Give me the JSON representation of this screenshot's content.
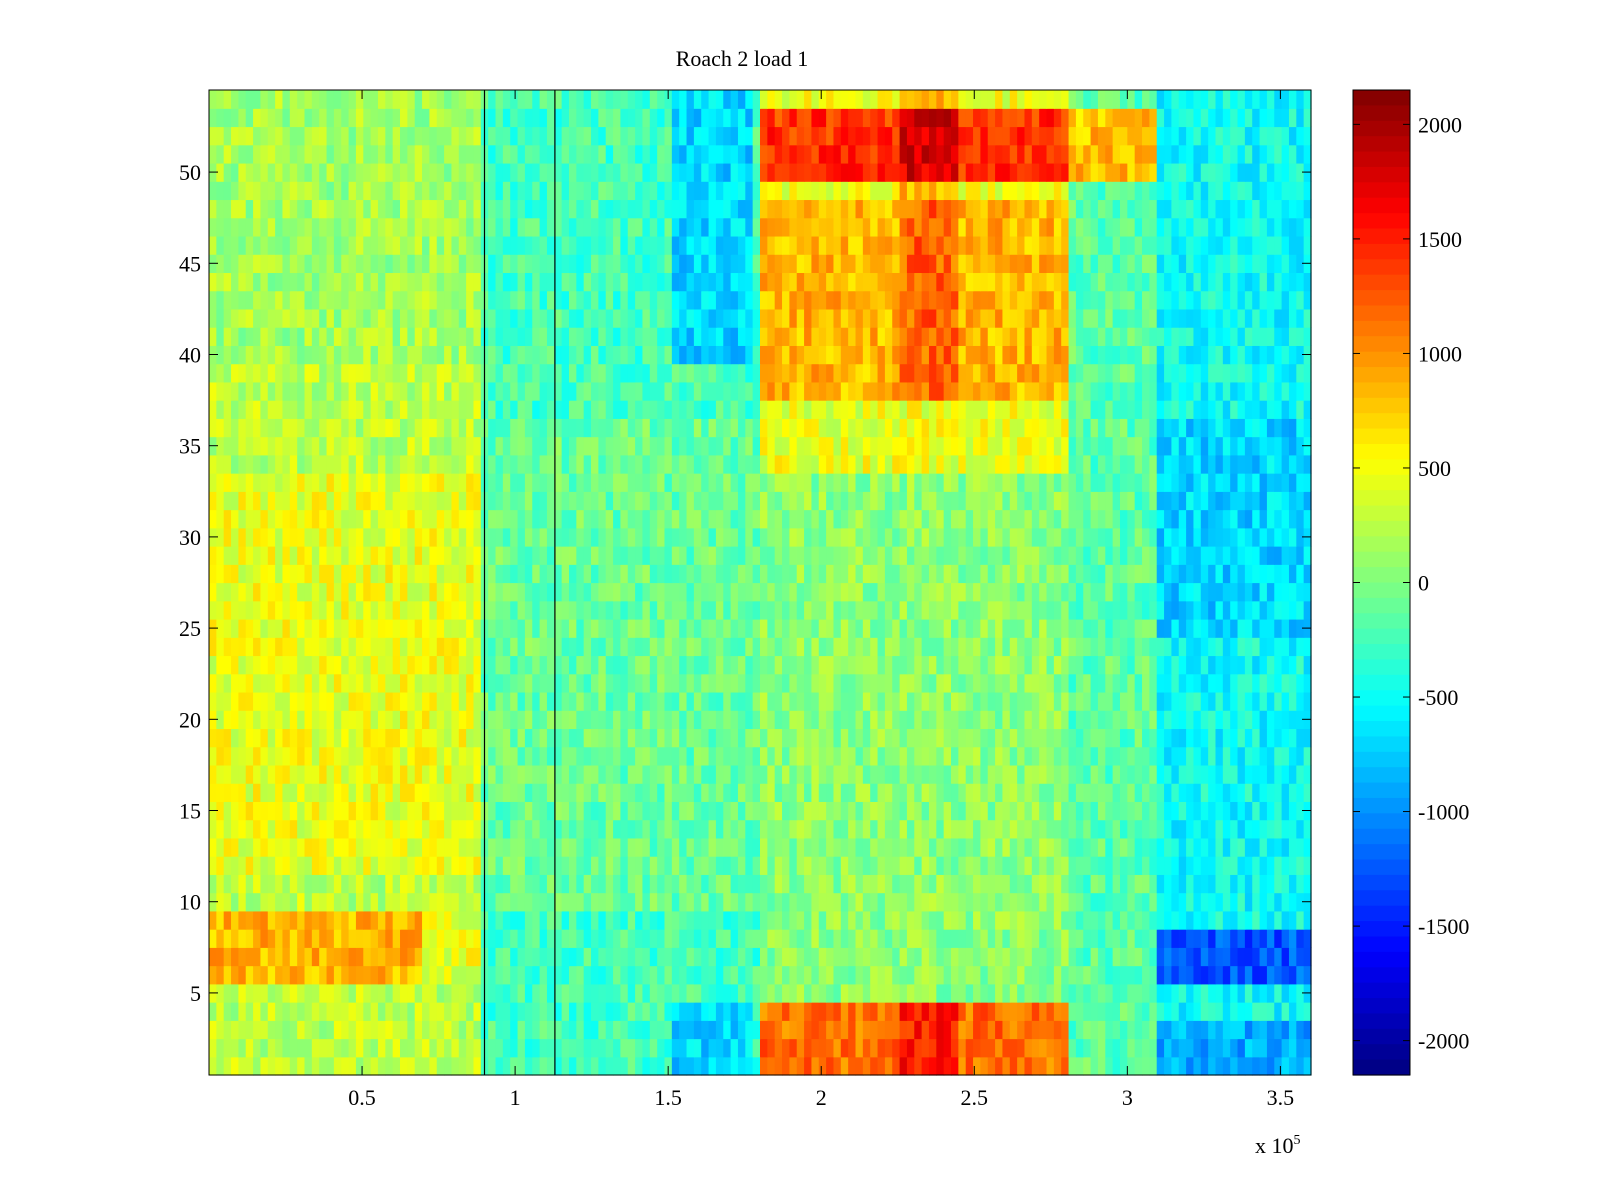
{
  "chart_data": {
    "type": "heatmap",
    "title": "Roach 2 load 1",
    "xlabel": "",
    "ylabel": "",
    "x_multiplier_label": "x 10",
    "x_multiplier_exponent": "5",
    "xlim": [
      0,
      360000
    ],
    "ylim": [
      0.5,
      54.5
    ],
    "x_ticks": [
      0.5,
      1,
      1.5,
      2,
      2.5,
      3,
      3.5
    ],
    "x_tick_labels": [
      "0.5",
      "1",
      "1.5",
      "2",
      "2.5",
      "3",
      "3.5"
    ],
    "y_ticks": [
      5,
      10,
      15,
      20,
      25,
      30,
      35,
      40,
      45,
      50
    ],
    "y_tick_labels": [
      "5",
      "10",
      "15",
      "20",
      "25",
      "30",
      "35",
      "40",
      "45",
      "50"
    ],
    "colorbar": {
      "colormap": "jet",
      "clim": [
        -2150,
        2150
      ],
      "ticks": [
        2000,
        1500,
        1000,
        500,
        0,
        -500,
        -1000,
        -1500,
        -2000
      ],
      "tick_labels": [
        "2000",
        "1500",
        "1000",
        "500",
        "0",
        "-500",
        "-1000",
        "-1500",
        "-2000"
      ]
    },
    "vertical_lines_x": [
      90000,
      113000
    ],
    "rows": 54,
    "regions": [
      {
        "desc": "left block warm",
        "x": [
          0,
          90000
        ],
        "y": [
          1,
          54
        ],
        "value": 250
      },
      {
        "desc": "left lower warm band",
        "x": [
          0,
          90000
        ],
        "y": [
          12,
          33
        ],
        "value": 500
      },
      {
        "desc": "rows 6-9 hot left",
        "x": [
          0,
          70000
        ],
        "y": [
          6,
          9
        ],
        "value": 950
      },
      {
        "desc": "middle cool",
        "x": [
          90000,
          180000
        ],
        "y": [
          1,
          54
        ],
        "value": -300
      },
      {
        "desc": "blue spots",
        "x": [
          150000,
          175000
        ],
        "y": [
          1,
          4
        ],
        "value": -900
      },
      {
        "desc": "upper hot band",
        "x": [
          180000,
          275000
        ],
        "y": [
          50,
          53
        ],
        "value": 1500
      },
      {
        "desc": "rows 44-48 warm",
        "x": [
          180000,
          275000
        ],
        "y": [
          44,
          48
        ],
        "value": 900
      },
      {
        "desc": "rows 38-43 warm",
        "x": [
          180000,
          275000
        ],
        "y": [
          38,
          43
        ],
        "value": 900
      },
      {
        "desc": "rows 1-4 hot",
        "x": [
          180000,
          275000
        ],
        "y": [
          1,
          4
        ],
        "value": 1200
      },
      {
        "desc": "right lower blue rows 6-8",
        "x": [
          310000,
          360000
        ],
        "y": [
          6,
          8
        ],
        "value": -1300
      },
      {
        "desc": "right mid cool",
        "x": [
          310000,
          360000
        ],
        "y": [
          10,
          36
        ],
        "value": -600
      }
    ]
  }
}
